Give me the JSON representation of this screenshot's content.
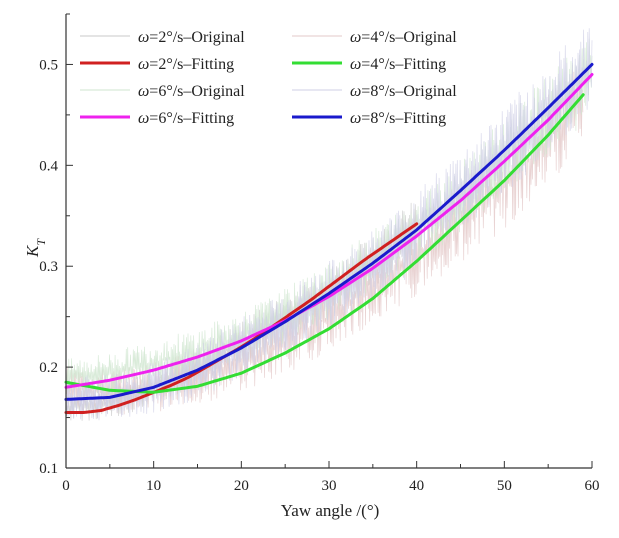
{
  "chart_data": {
    "type": "line",
    "xlabel": "Yaw angle /(°)",
    "ylabel": "K_T",
    "xlim": [
      0,
      60
    ],
    "ylim": [
      0.1,
      0.55
    ],
    "x_ticks": [
      "0",
      "10",
      "20",
      "30",
      "40",
      "50",
      "60"
    ],
    "y_ticks": [
      "0.1",
      "0.2",
      "0.3",
      "0.4",
      "0.5"
    ],
    "grid": false,
    "legend_position": "top-left",
    "series": [
      {
        "name": "ω=2°/s–Original",
        "kind": "raw",
        "color": "#c9c9c9",
        "x": [
          0,
          5,
          10,
          15,
          20,
          25,
          30,
          35,
          40
        ],
        "y": [
          0.16,
          0.165,
          0.18,
          0.2,
          0.225,
          0.25,
          0.275,
          0.305,
          0.34
        ],
        "noise": 0.025
      },
      {
        "name": "ω=2°/s–Fitting",
        "kind": "fit",
        "color": "#d02020",
        "x": [
          0,
          2,
          4,
          6,
          8,
          10,
          12,
          14,
          16,
          18,
          20,
          22,
          24,
          26,
          28,
          30,
          32,
          34,
          36,
          38,
          40
        ],
        "y": [
          0.155,
          0.155,
          0.157,
          0.162,
          0.168,
          0.175,
          0.182,
          0.19,
          0.2,
          0.21,
          0.22,
          0.231,
          0.243,
          0.255,
          0.267,
          0.28,
          0.293,
          0.306,
          0.318,
          0.33,
          0.342
        ]
      },
      {
        "name": "ω=4°/s–Original",
        "kind": "raw",
        "color": "#e3c8c8",
        "x": [
          0,
          5,
          10,
          15,
          20,
          25,
          30,
          35,
          40,
          45,
          50,
          55,
          59
        ],
        "y": [
          0.18,
          0.175,
          0.18,
          0.19,
          0.205,
          0.225,
          0.25,
          0.28,
          0.31,
          0.345,
          0.38,
          0.425,
          0.47
        ],
        "noise": 0.035
      },
      {
        "name": "ω=4°/s–Fitting",
        "kind": "fit",
        "color": "#33dd33",
        "x": [
          0,
          5,
          10,
          15,
          20,
          25,
          30,
          35,
          40,
          45,
          50,
          55,
          59
        ],
        "y": [
          0.185,
          0.177,
          0.175,
          0.181,
          0.194,
          0.214,
          0.238,
          0.268,
          0.305,
          0.345,
          0.385,
          0.43,
          0.47
        ]
      },
      {
        "name": "ω=6°/s–Original",
        "kind": "raw",
        "color": "#cfe6cf",
        "x": [
          0,
          5,
          10,
          15,
          20,
          25,
          30,
          35,
          40,
          45,
          50,
          55,
          60
        ],
        "y": [
          0.19,
          0.195,
          0.205,
          0.215,
          0.23,
          0.25,
          0.275,
          0.305,
          0.335,
          0.37,
          0.41,
          0.45,
          0.49
        ],
        "noise": 0.03
      },
      {
        "name": "ω=6°/s–Fitting",
        "kind": "fit",
        "color": "#ee22ee",
        "x": [
          0,
          5,
          10,
          15,
          20,
          25,
          30,
          35,
          40,
          45,
          50,
          55,
          60
        ],
        "y": [
          0.18,
          0.187,
          0.197,
          0.21,
          0.226,
          0.246,
          0.27,
          0.298,
          0.33,
          0.365,
          0.404,
          0.445,
          0.49
        ]
      },
      {
        "name": "ω=8°/s–Original",
        "kind": "raw",
        "color": "#cfcfe6",
        "x": [
          0,
          5,
          10,
          15,
          20,
          25,
          30,
          35,
          40,
          45,
          50,
          55,
          60
        ],
        "y": [
          0.17,
          0.17,
          0.18,
          0.195,
          0.22,
          0.245,
          0.27,
          0.3,
          0.335,
          0.375,
          0.415,
          0.455,
          0.5
        ],
        "noise": 0.035
      },
      {
        "name": "ω=8°/s–Fitting",
        "kind": "fit",
        "color": "#1a1acc",
        "x": [
          0,
          5,
          10,
          15,
          20,
          25,
          30,
          35,
          40,
          45,
          50,
          55,
          60
        ],
        "y": [
          0.168,
          0.17,
          0.18,
          0.197,
          0.219,
          0.245,
          0.273,
          0.303,
          0.336,
          0.375,
          0.415,
          0.457,
          0.5
        ]
      }
    ]
  }
}
